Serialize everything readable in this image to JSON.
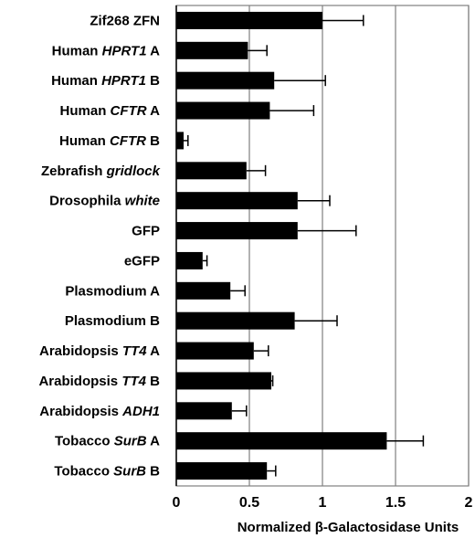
{
  "chart_data": {
    "type": "bar",
    "orientation": "horizontal",
    "categories": [
      [
        {
          "t": "Zif268 ZFN",
          "i": false
        }
      ],
      [
        {
          "t": "Human ",
          "i": false
        },
        {
          "t": "HPRT1",
          "i": true
        },
        {
          "t": " A",
          "i": false
        }
      ],
      [
        {
          "t": "Human ",
          "i": false
        },
        {
          "t": "HPRT1",
          "i": true
        },
        {
          "t": " B",
          "i": false
        }
      ],
      [
        {
          "t": "Human ",
          "i": false
        },
        {
          "t": "CFTR",
          "i": true
        },
        {
          "t": " A",
          "i": false
        }
      ],
      [
        {
          "t": "Human ",
          "i": false
        },
        {
          "t": "CFTR",
          "i": true
        },
        {
          "t": " B",
          "i": false
        }
      ],
      [
        {
          "t": "Zebrafish ",
          "i": false
        },
        {
          "t": "gridlock",
          "i": true
        }
      ],
      [
        {
          "t": "Drosophila ",
          "i": false
        },
        {
          "t": "white",
          "i": true
        }
      ],
      [
        {
          "t": "GFP",
          "i": false
        }
      ],
      [
        {
          "t": "eGFP",
          "i": false
        }
      ],
      [
        {
          "t": "Plasmodium A",
          "i": false
        }
      ],
      [
        {
          "t": "Plasmodium B",
          "i": false
        }
      ],
      [
        {
          "t": "Arabidopsis ",
          "i": false
        },
        {
          "t": "TT4",
          "i": true
        },
        {
          "t": " A",
          "i": false
        }
      ],
      [
        {
          "t": "Arabidopsis ",
          "i": false
        },
        {
          "t": "TT4",
          "i": true
        },
        {
          "t": " B",
          "i": false
        }
      ],
      [
        {
          "t": "Arabidopsis ",
          "i": false
        },
        {
          "t": "ADH1",
          "i": true
        }
      ],
      [
        {
          "t": "Tobacco ",
          "i": false
        },
        {
          "t": "SurB",
          "i": true
        },
        {
          "t": " A",
          "i": false
        }
      ],
      [
        {
          "t": "Tobacco ",
          "i": false
        },
        {
          "t": "SurB",
          "i": true
        },
        {
          "t": " B",
          "i": false
        }
      ]
    ],
    "values": [
      1.0,
      0.49,
      0.67,
      0.64,
      0.05,
      0.48,
      0.83,
      0.83,
      0.18,
      0.37,
      0.81,
      0.53,
      0.65,
      0.38,
      1.44,
      0.62
    ],
    "errors": [
      0.28,
      0.13,
      0.35,
      0.3,
      0.03,
      0.13,
      0.22,
      0.4,
      0.03,
      0.1,
      0.29,
      0.1,
      0.01,
      0.1,
      0.25,
      0.06
    ],
    "xlabel": "Normalized β-Galactosidase Units",
    "xlim": [
      0,
      2
    ],
    "xticks": [
      0,
      0.5,
      1,
      1.5,
      2
    ],
    "xtick_labels": [
      "0",
      "0.5",
      "1",
      "1.5",
      "2"
    ],
    "grid": "vertical",
    "bar_color": "#000000",
    "grid_color": "#808080"
  }
}
